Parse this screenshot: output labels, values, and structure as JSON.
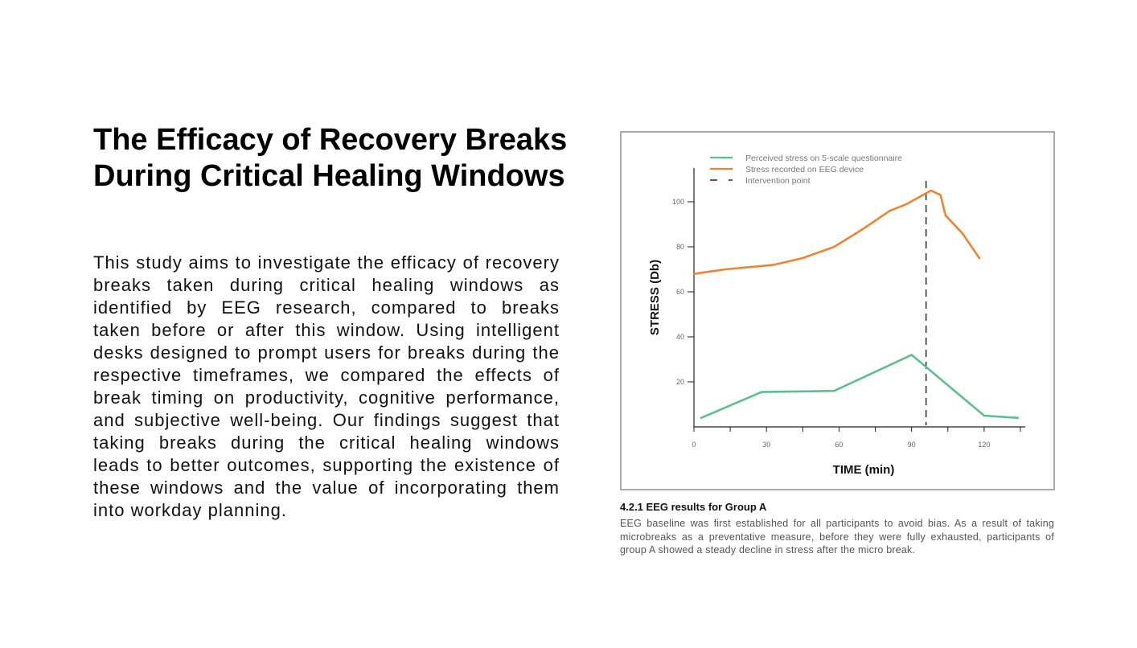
{
  "page": {
    "title": "The Efficacy of Recovery Breaks During Critical Healing Windows",
    "body": "This study aims to investigate the efficacy of recovery breaks taken during critical healing windows as identified by EEG research, compared to breaks taken before or after this window. Using intelligent desks designed to prompt users for breaks during the respective timeframes, we compared the effects of break timing on productivity, cognitive performance, and subjective well-being. Our findings suggest that taking breaks during the critical healing windows leads to better outcomes, supporting the existence of these windows and the value of incorporating them into workday planning."
  },
  "caption": {
    "title": "4.2.1 EEG results for Group A",
    "text": "EEG baseline was first established for all participants to avoid bias. As a result of taking microbreaks as a preventative measure, before they were fully exhausted, participants of group A showed a steady decline in stress after the micro break."
  },
  "chart_data": {
    "type": "line",
    "title": "",
    "xlabel": "TIME (min)",
    "ylabel": "STRESS (Db)",
    "xlim": [
      0,
      137
    ],
    "ylim": [
      0,
      115
    ],
    "x_ticks": [
      0,
      30,
      60,
      90,
      120
    ],
    "y_ticks": [
      20,
      40,
      60,
      80,
      100
    ],
    "grid": false,
    "legend_position": "top-left",
    "series": [
      {
        "name": "Perceived stress on 5-scale questionnaire",
        "color": "#5dbf8e",
        "style": "solid",
        "x": [
          3,
          28,
          58,
          90,
          120,
          134
        ],
        "y": [
          4,
          15.5,
          16,
          32,
          5,
          4
        ]
      },
      {
        "name": "Stress recorded on EEG device",
        "color": "#ee8433",
        "style": "solid",
        "x": [
          0,
          13,
          33,
          45,
          58,
          70,
          81,
          88,
          98,
          102,
          104,
          111,
          118
        ],
        "y": [
          68,
          70,
          72,
          75,
          80,
          88,
          96,
          99,
          105,
          103,
          94,
          86,
          75
        ]
      }
    ],
    "annotations": [
      {
        "name": "Intervention point",
        "type": "vline",
        "x": 96,
        "color": "#222222",
        "style": "dashed"
      }
    ]
  }
}
